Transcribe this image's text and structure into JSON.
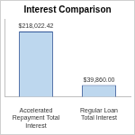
{
  "chart_data": {
    "type": "bar",
    "title": "Interest Comparison",
    "categories": [
      "Accelerated Repayment Total Interest",
      "Regular Loan Total Interest"
    ],
    "values": [
      218022.42,
      39860
    ],
    "value_labels": [
      "$218,022.42",
      "$39,860.00"
    ],
    "color": "#bdd7ee",
    "ylim": [
      0,
      260000
    ],
    "grid": false,
    "data_labels": true,
    "tick_labels": "x"
  }
}
